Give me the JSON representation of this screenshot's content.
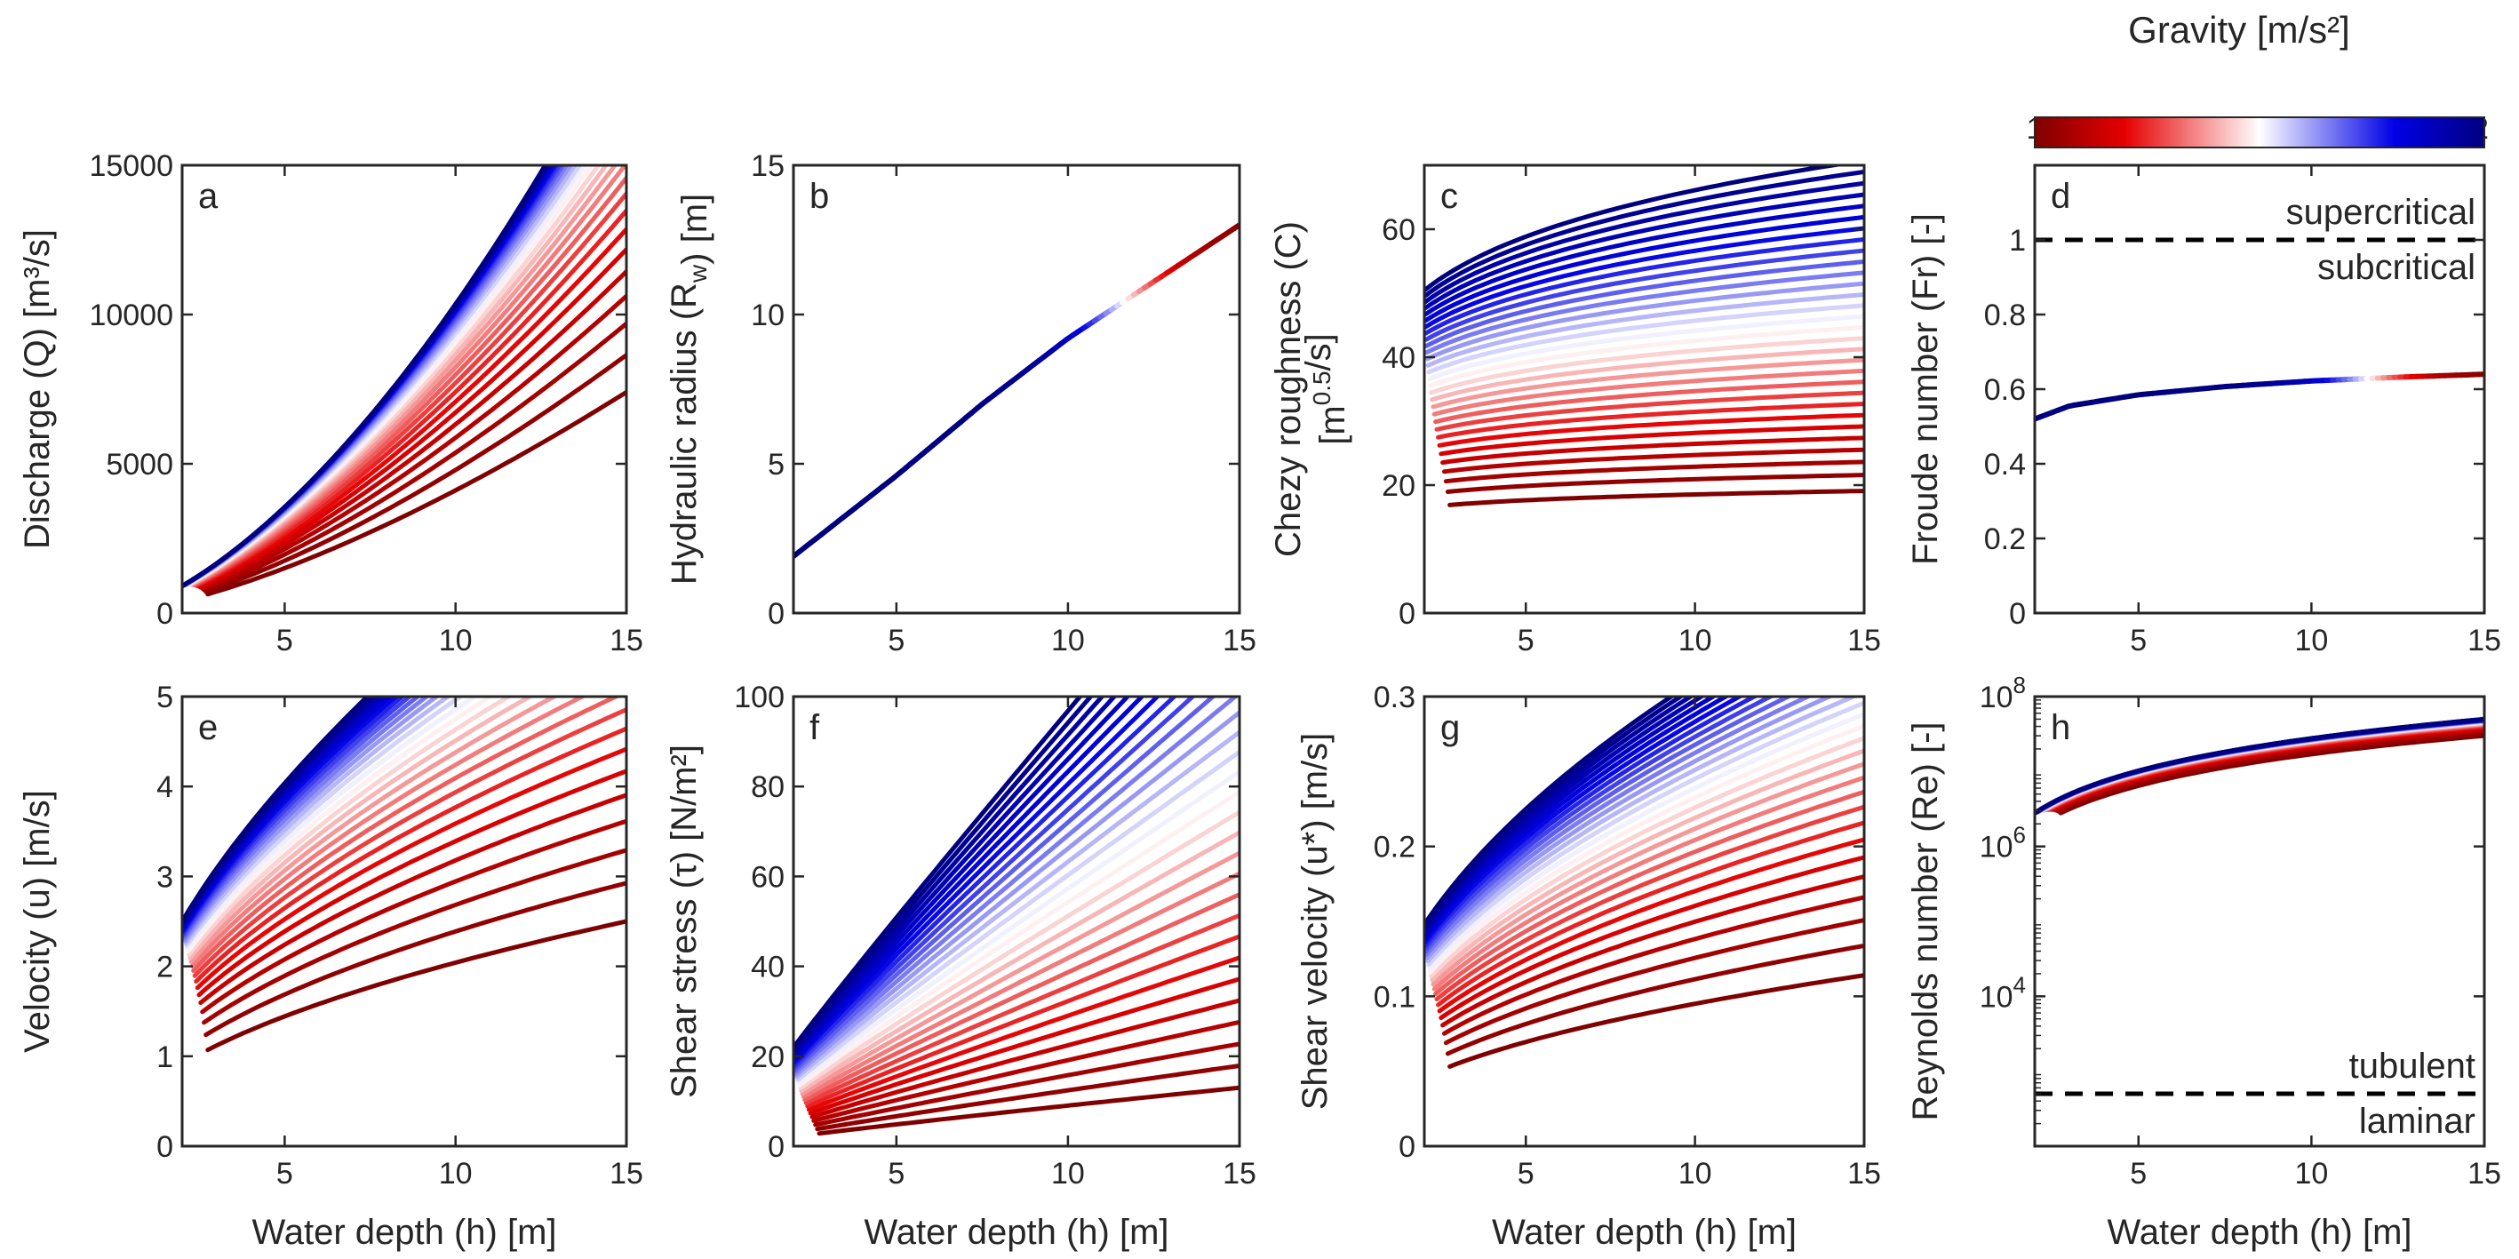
{
  "colorbar": {
    "title": "Gravity [m/s²]",
    "min_label": "1",
    "max_label": "12",
    "range": [
      1,
      12
    ],
    "colors": [
      "#7f0000",
      "#e60000",
      "#ffffff",
      "#0000e6",
      "#00007f"
    ]
  },
  "chart_data": [
    {
      "id": "a",
      "type": "line",
      "panel_label": "a",
      "xlabel": "",
      "ylabel": "Discharge (Q) [m³/s]",
      "xlim": [
        2,
        15
      ],
      "ylim": [
        0,
        15000
      ],
      "yscale": "linear",
      "xticks": [
        5,
        10,
        15
      ],
      "yticks": [
        0,
        5000,
        10000,
        15000
      ],
      "family": {
        "gravity_min": 1,
        "gravity_max": 12,
        "series_count": 30,
        "value_at_h15_min_g": 7400,
        "value_at_h2_max_g": 900,
        "exponent_h": 1.45,
        "exponent_g_low": 0.5
      },
      "annotations": []
    },
    {
      "id": "b",
      "type": "line",
      "panel_label": "b",
      "xlabel": "",
      "ylabel": "Hydraulic radius (R_w) [m]",
      "xlim": [
        2,
        15
      ],
      "ylim": [
        0,
        15
      ],
      "yscale": "linear",
      "xticks": [
        5,
        10,
        15
      ],
      "yticks": [
        0,
        5,
        10,
        15
      ],
      "single_curve": {
        "x": [
          2,
          5,
          7.5,
          10,
          12.5,
          15
        ],
        "y": [
          1.9,
          4.6,
          7.0,
          9.2,
          11.1,
          13.0
        ]
      },
      "annotations": []
    },
    {
      "id": "c",
      "type": "line",
      "panel_label": "c",
      "xlabel": "",
      "ylabel": "Chezy roughness (C) [m^0.5/s]",
      "xlim": [
        2,
        15
      ],
      "ylim": [
        0,
        70
      ],
      "yscale": "linear",
      "xticks": [
        5,
        10,
        15
      ],
      "yticks": [
        0,
        20,
        40,
        60
      ],
      "family": {
        "gravity_min": 1,
        "gravity_max": 12,
        "series_count": 30,
        "value_at_h15_min_g": 21.5,
        "value_at_h2_max_g": 52,
        "exponent_h": 0.12,
        "exponent_g_low": 0.5
      },
      "annotations": []
    },
    {
      "id": "d",
      "type": "line",
      "panel_label": "d",
      "xlabel": "",
      "ylabel": "Froude number (Fr) [-]",
      "xlim": [
        2,
        15
      ],
      "ylim": [
        0,
        1.2
      ],
      "yscale": "linear",
      "xticks": [
        5,
        10,
        15
      ],
      "yticks": [
        0,
        0.2,
        0.4,
        0.6,
        0.8,
        1
      ],
      "single_curve": {
        "x": [
          2,
          3,
          5,
          7.5,
          10,
          12.5,
          15
        ],
        "y": [
          0.52,
          0.555,
          0.585,
          0.607,
          0.622,
          0.632,
          0.64
        ]
      },
      "threshold": {
        "y": 1,
        "above_label": "supercritical",
        "below_label": "subcritical"
      },
      "annotations": [
        "supercritical",
        "subcritical"
      ]
    },
    {
      "id": "e",
      "type": "line",
      "panel_label": "e",
      "xlabel": "Water depth (h) [m]",
      "ylabel": "Velocity (u) [m/s]",
      "xlim": [
        2,
        15
      ],
      "ylim": [
        0,
        5
      ],
      "yscale": "linear",
      "xticks": [
        5,
        10,
        15
      ],
      "yticks": [
        0,
        1,
        2,
        3,
        4,
        5
      ],
      "family": {
        "gravity_min": 1,
        "gravity_max": 12,
        "series_count": 30,
        "value_at_h15_min_g": 2.5,
        "value_at_h2_max_g": 2.5,
        "exponent_h": 0.5,
        "exponent_g_low": 0.5
      },
      "annotations": []
    },
    {
      "id": "f",
      "type": "line",
      "panel_label": "f",
      "xlabel": "Water depth (h) [m]",
      "ylabel": "Shear stress (τ) [N/m²]",
      "xlim": [
        2,
        15
      ],
      "ylim": [
        0,
        100
      ],
      "yscale": "linear",
      "xticks": [
        5,
        10,
        15
      ],
      "yticks": [
        0,
        20,
        40,
        60,
        80,
        100
      ],
      "family": {
        "gravity_min": 1,
        "gravity_max": 12,
        "series_count": 30,
        "value_at_h15_min_g": 13,
        "value_at_h2_max_g": 22,
        "exponent_h": 0.9,
        "exponent_g_low": 1.0
      },
      "annotations": []
    },
    {
      "id": "g",
      "type": "line",
      "panel_label": "g",
      "xlabel": "Water depth (h) [m]",
      "ylabel": "Shear velocity (u*) [m/s]",
      "xlim": [
        2,
        15
      ],
      "ylim": [
        0,
        0.3
      ],
      "yscale": "linear",
      "xticks": [
        5,
        10,
        15
      ],
      "yticks": [
        0,
        0.1,
        0.2,
        0.3
      ],
      "family": {
        "gravity_min": 1,
        "gravity_max": 12,
        "series_count": 30,
        "value_at_h15_min_g": 0.114,
        "value_at_h2_max_g": 0.148,
        "exponent_h": 0.45,
        "exponent_g_low": 0.5
      },
      "annotations": []
    },
    {
      "id": "h",
      "type": "line",
      "panel_label": "h",
      "xlabel": "Water depth (h) [m]",
      "ylabel": "Reynolds number (Re) [-]",
      "xlim": [
        2,
        15
      ],
      "ylim": [
        100,
        100000000
      ],
      "yscale": "log",
      "xticks": [
        5,
        10,
        15
      ],
      "yticks": [
        10000,
        1000000,
        100000000
      ],
      "ytick_labels": [
        {
          "base": "10",
          "exp": "4"
        },
        {
          "base": "10",
          "exp": "6"
        },
        {
          "base": "10",
          "exp": "8"
        }
      ],
      "family": {
        "gravity_min": 1,
        "gravity_max": 12,
        "series_count": 30,
        "value_at_h15_min_g": 30000000,
        "value_at_h2_max_g": 2800000,
        "exponent_h": 1.4,
        "exponent_g_low": 0.25
      },
      "threshold": {
        "y": 500,
        "above_label": "tubulent",
        "below_label": "laminar"
      },
      "annotations": [
        "tubulent",
        "laminar"
      ]
    }
  ]
}
